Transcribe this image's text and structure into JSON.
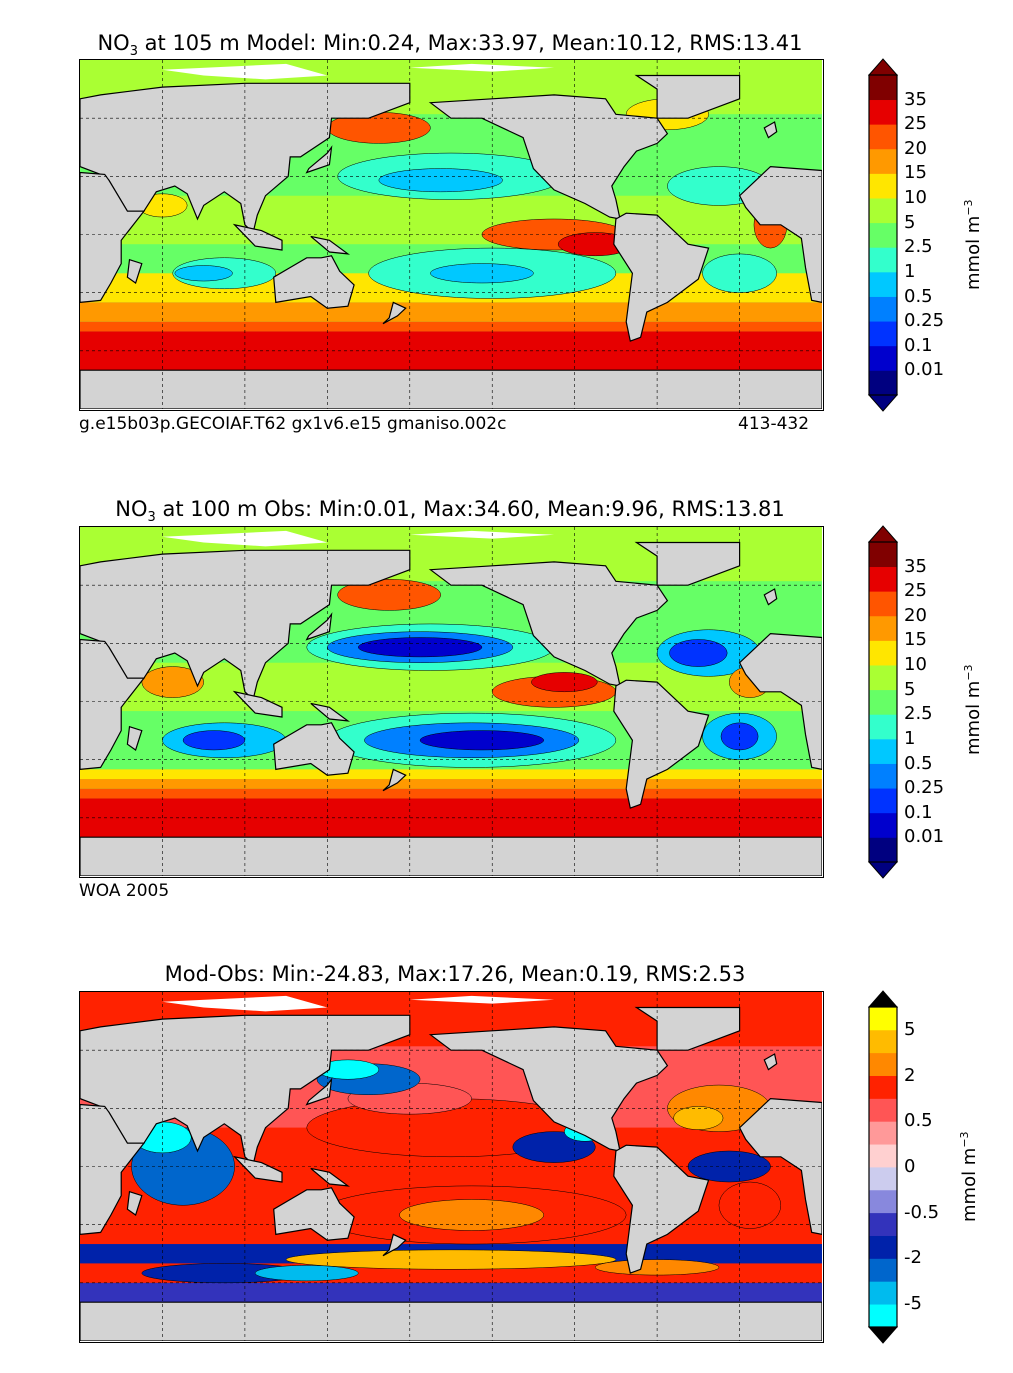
{
  "chart_data": [
    {
      "type": "heatmap",
      "panel": "model",
      "title_prefix": "NO",
      "title_sub": "3",
      "title_rest": " at 105 m Model: Min:0.24, Max:33.97, Mean:10.12, RMS:13.41",
      "stats": {
        "min": 0.24,
        "max": 33.97,
        "mean": 10.12,
        "rms": 13.41
      },
      "footer_left": "g.e15b03p.GECOIAF.T62 gx1v6.e15 gmaniso.002c",
      "footer_right": "413-432",
      "colorbar": {
        "ticks": [
          "35",
          "25",
          "20",
          "15",
          "10",
          "5",
          "2.5",
          "1",
          "0.5",
          "0.25",
          "0.1",
          "0.01"
        ],
        "colors": [
          "#000080",
          "#0000cd",
          "#0033ff",
          "#0080ff",
          "#00c8ff",
          "#33ffcc",
          "#66ff66",
          "#aaff33",
          "#ffe600",
          "#ff9900",
          "#ff5500",
          "#e60000",
          "#800000"
        ],
        "unit_main": "mmol m",
        "unit_sup": "−3",
        "extend": "both"
      }
    },
    {
      "type": "heatmap",
      "panel": "obs",
      "title_prefix": "NO",
      "title_sub": "3",
      "title_rest": " at 100 m Obs: Min:0.01, Max:34.60, Mean:9.96, RMS:13.81",
      "stats": {
        "min": 0.01,
        "max": 34.6,
        "mean": 9.96,
        "rms": 13.81
      },
      "footer_left": "WOA 2005",
      "colorbar": {
        "ticks": [
          "35",
          "25",
          "20",
          "15",
          "10",
          "5",
          "2.5",
          "1",
          "0.5",
          "0.25",
          "0.1",
          "0.01"
        ],
        "colors": [
          "#000080",
          "#0000cd",
          "#0033ff",
          "#0080ff",
          "#00c8ff",
          "#33ffcc",
          "#66ff66",
          "#aaff33",
          "#ffe600",
          "#ff9900",
          "#ff5500",
          "#e60000",
          "#800000"
        ],
        "unit_main": "mmol m",
        "unit_sup": "−3",
        "extend": "both"
      }
    },
    {
      "type": "heatmap",
      "panel": "diff",
      "title": "Mod-Obs: Min:-24.83, Max:17.26, Mean:0.19, RMS:2.53",
      "stats": {
        "min": -24.83,
        "max": 17.26,
        "mean": 0.19,
        "rms": 2.53
      },
      "colorbar": {
        "ticks": [
          "5",
          "2",
          "0.5",
          "0",
          "-0.5",
          "-2",
          "-5"
        ],
        "tick_slots": [
          1,
          3,
          5,
          7,
          9,
          11,
          13
        ],
        "colors": [
          "#00ffff",
          "#00bbee",
          "#0066cc",
          "#0022aa",
          "#3333bb",
          "#8888dd",
          "#ccccee",
          "#ffd0d0",
          "#ff9999",
          "#ff5555",
          "#ff2200",
          "#ff8800",
          "#ffbb00",
          "#ffff00"
        ],
        "unit_main": "mmol m",
        "unit_sup": "−3",
        "extend": "both",
        "extend_color": "#000000"
      }
    }
  ],
  "map": {
    "ocean_color": "#7cff7a",
    "land_color": "#d3d3d3",
    "ice_color": "#ffffff",
    "grid": true
  }
}
